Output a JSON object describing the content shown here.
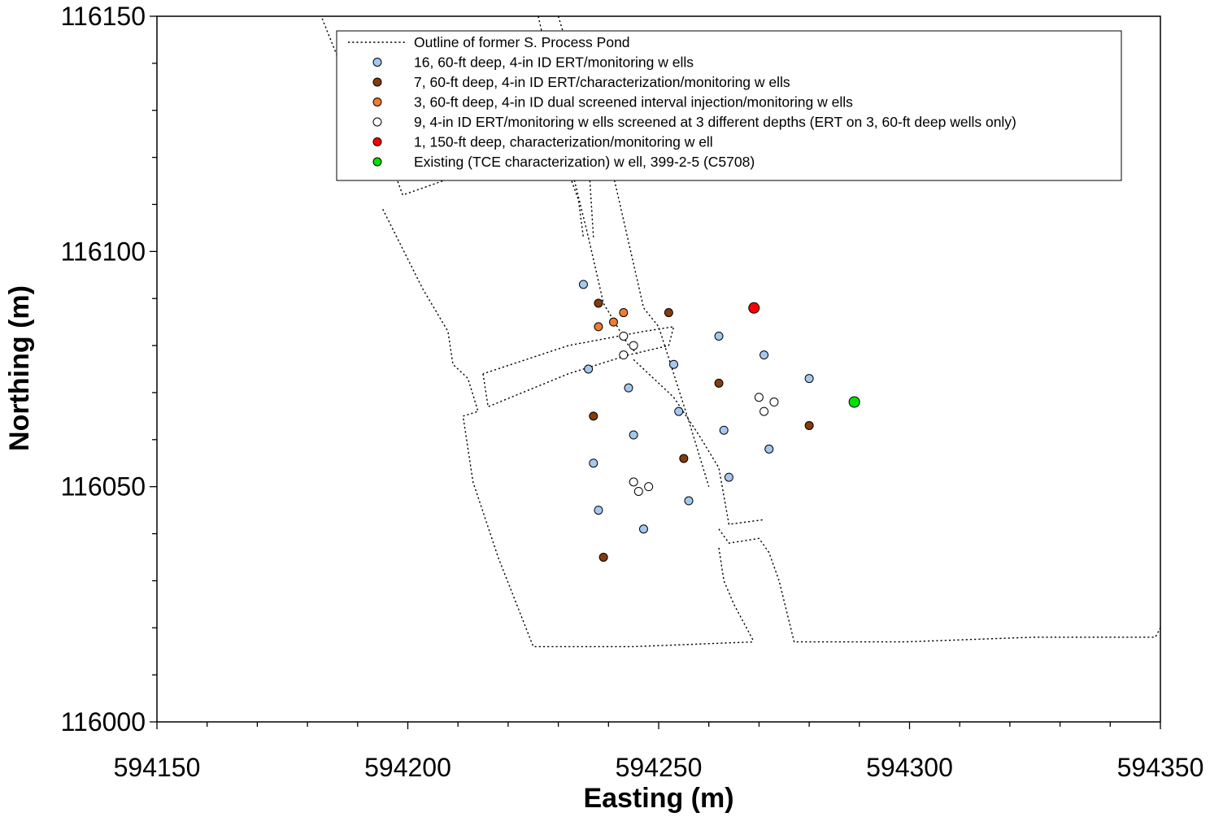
{
  "chart_data": {
    "type": "scatter",
    "title": "",
    "xlabel": "Easting (m)",
    "ylabel": "Northing (m)",
    "xlim": [
      594150,
      594350
    ],
    "ylim": [
      116000,
      116150
    ],
    "x_ticks": [
      "594150",
      "594200",
      "594250",
      "594300",
      "594350"
    ],
    "y_ticks": [
      "116000",
      "116050",
      "116100",
      "116150"
    ],
    "grid": false,
    "legend_position": "top",
    "outline": {
      "name": "Outline of former S. Process Pond",
      "segments": [
        [
          [
            594182,
            116152
          ],
          [
            594188,
            116136
          ],
          [
            594192,
            116132
          ],
          [
            594199,
            116112
          ],
          [
            594207,
            116115
          ],
          [
            594214,
            116118
          ],
          [
            594221,
            116121
          ],
          [
            594225,
            116122
          ]
        ],
        [
          [
            594226,
            116150
          ],
          [
            594229,
            116136
          ],
          [
            594230,
            116132
          ],
          [
            594230,
            116125
          ],
          [
            594232,
            116117
          ],
          [
            594234,
            116111
          ],
          [
            594235,
            116103
          ]
        ],
        [
          [
            594195,
            116109
          ],
          [
            594203,
            116092
          ],
          [
            594208,
            116083
          ],
          [
            594209,
            116076
          ],
          [
            594211,
            116074
          ],
          [
            594212,
            116073
          ],
          [
            594214,
            116066
          ],
          [
            594211,
            116065
          ],
          [
            594213,
            116051
          ],
          [
            594218,
            116035
          ],
          [
            594225,
            116016
          ],
          [
            594245,
            116016
          ],
          [
            594269,
            116017
          ]
        ],
        [
          [
            594207,
            116130
          ]
        ],
        [
          [
            594230,
            116150
          ],
          [
            594234,
            116136
          ],
          [
            594236,
            116130
          ],
          [
            594236,
            116120
          ],
          [
            594237,
            116103
          ]
        ],
        [
          [
            594233,
            116116
          ],
          [
            594236,
            116103
          ],
          [
            594239,
            116089
          ],
          [
            594244,
            116080
          ],
          [
            594246,
            116078
          ]
        ],
        [
          [
            594241,
            116116
          ],
          [
            594244,
            116102
          ],
          [
            594247,
            116088
          ],
          [
            594250,
            116084
          ],
          [
            594256,
            116064
          ],
          [
            594260,
            116050
          ]
        ],
        [
          [
            594215,
            116074
          ],
          [
            594216,
            116067
          ],
          [
            594232,
            116074
          ],
          [
            594244,
            116078
          ],
          [
            594252,
            116080
          ],
          [
            594253,
            116084
          ],
          [
            594247,
            116083
          ],
          [
            594232,
            116080
          ],
          [
            594215,
            116074
          ]
        ],
        [
          [
            594245,
            116077
          ],
          [
            594253,
            116069
          ],
          [
            594258,
            116061
          ],
          [
            594262,
            116054
          ],
          [
            594264,
            116042
          ],
          [
            594271,
            116043
          ]
        ],
        [
          [
            594262,
            116041
          ],
          [
            594264,
            116038
          ],
          [
            594270,
            116039
          ],
          [
            594272,
            116036
          ],
          [
            594274,
            116030
          ],
          [
            594277,
            116017
          ],
          [
            594299,
            116017
          ],
          [
            594325,
            116018
          ],
          [
            594349,
            116018
          ],
          [
            594350,
            116020
          ]
        ],
        [
          [
            594262,
            116037
          ],
          [
            594263,
            116030
          ],
          [
            594265,
            116025
          ],
          [
            594269,
            116017
          ]
        ]
      ]
    },
    "series": [
      {
        "name": "16, 60-ft deep, 4-in ID ERT/monitoring w ells",
        "color": "#a5c8ef",
        "x": [
          594235,
          594236,
          594237,
          594238,
          594244,
          594245,
          594247,
          594253,
          594254,
          594256,
          594262,
          594263,
          594264,
          594271,
          594272,
          594280
        ],
        "y": [
          116093,
          116075,
          116055,
          116045,
          116071,
          116061,
          116041,
          116076,
          116066,
          116047,
          116082,
          116062,
          116052,
          116078,
          116058,
          116073
        ]
      },
      {
        "name": "7, 60-ft deep, 4-in ID ERT/characterization/monitoring w ells",
        "color": "#843c0c",
        "x": [
          594237,
          594238,
          594239,
          594252,
          594255,
          594262,
          594280
        ],
        "y": [
          116065,
          116089,
          116035,
          116087,
          116056,
          116072,
          116063
        ]
      },
      {
        "name": "3, 60-ft deep, 4-in ID dual screened interval injection/monitoring w ells",
        "color": "#ed7d31",
        "x": [
          594238,
          594241,
          594243
        ],
        "y": [
          116084,
          116085,
          116087
        ]
      },
      {
        "name": "9, 4-in ID ERT/monitoring w ells screened at 3 different depths (ERT on 3, 60-ft deep wells only)",
        "color": "#ffffff",
        "x": [
          594243,
          594243,
          594245,
          594245,
          594246,
          594248,
          594270,
          594271,
          594273
        ],
        "y": [
          116082,
          116078,
          116080,
          116051,
          116049,
          116050,
          116069,
          116066,
          116068
        ]
      },
      {
        "name": "1, 150-ft deep, characterization/monitoring w ell",
        "color": "#ff0000",
        "x": [
          594269
        ],
        "y": [
          116088
        ]
      },
      {
        "name": "Existing (TCE characterization) w ell, 399-2-5 (C5708)",
        "color": "#00e000",
        "x": [
          594289
        ],
        "y": [
          116068
        ]
      }
    ]
  }
}
